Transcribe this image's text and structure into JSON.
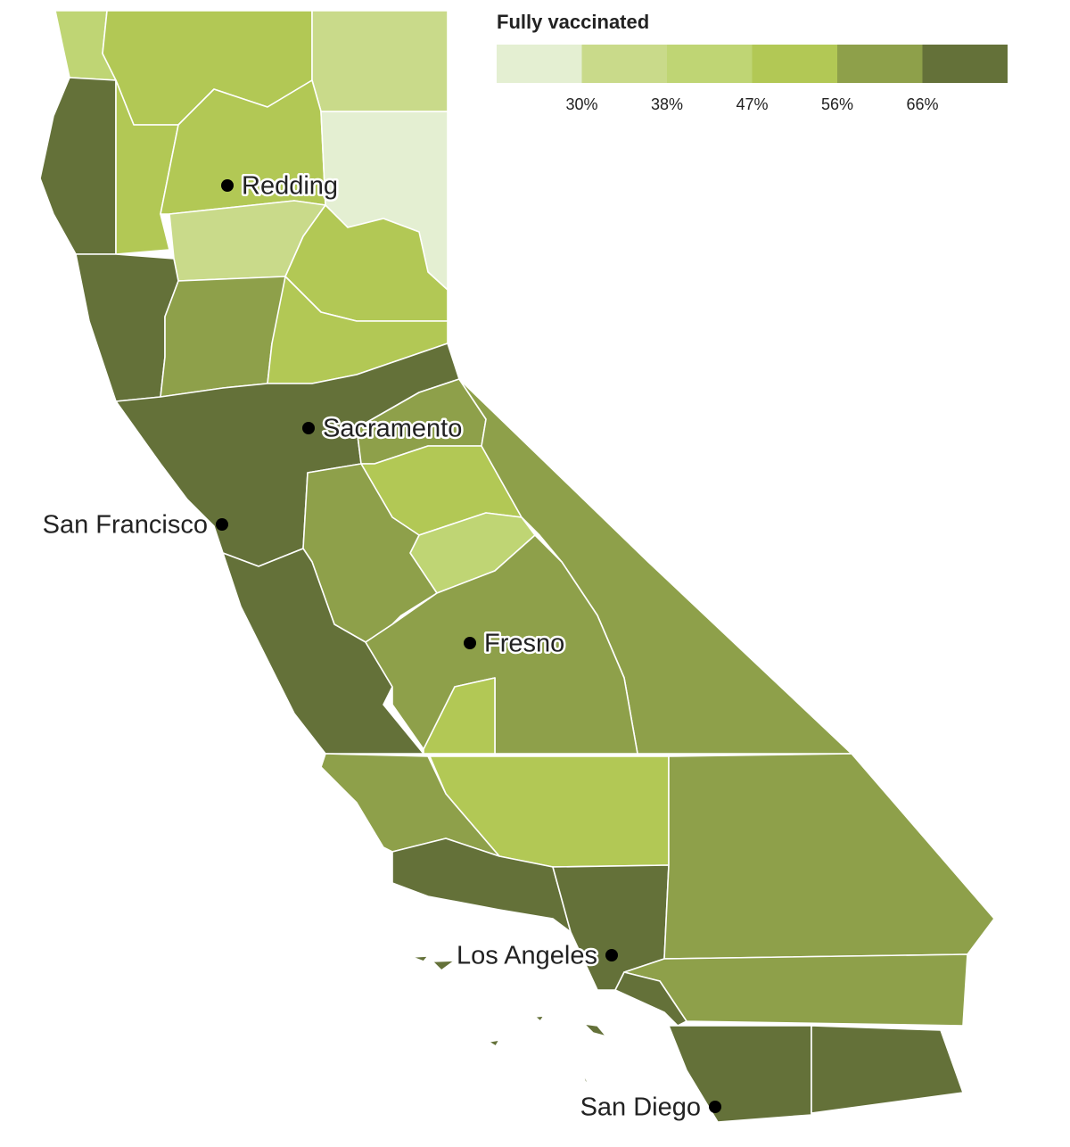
{
  "legend": {
    "title": "Fully vaccinated",
    "colors": [
      "#e4efd2",
      "#c9da8a",
      "#bfd574",
      "#b2c855",
      "#8ea04a",
      "#647139"
    ],
    "ticks": [
      {
        "value": 30,
        "label": "30%"
      },
      {
        "value": 38,
        "label": "38%"
      },
      {
        "value": 47,
        "label": "47%"
      },
      {
        "value": 56,
        "label": "56%"
      },
      {
        "value": 66,
        "label": "66%"
      }
    ]
  },
  "cities": [
    {
      "label": "Redding"
    },
    {
      "label": "Sacramento"
    },
    {
      "label": "San Francisco"
    },
    {
      "label": "Fresno"
    },
    {
      "label": "Los Angeles"
    },
    {
      "label": "San Diego"
    }
  ]
}
